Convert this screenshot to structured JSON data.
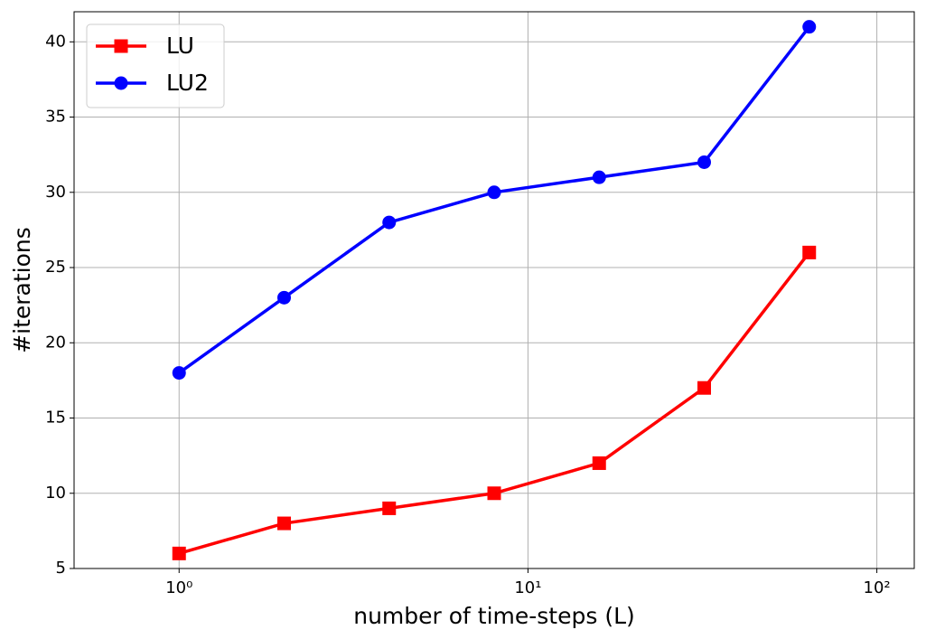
{
  "chart_data": {
    "type": "line",
    "x_label": "number of time-steps (L)",
    "y_label": "#iterations",
    "x": [
      1,
      2,
      4,
      8,
      16,
      32,
      64
    ],
    "series": [
      {
        "name": "LU",
        "color": "#ff0000",
        "marker": "square",
        "values": [
          6,
          8,
          9,
          10,
          12,
          17,
          26
        ]
      },
      {
        "name": "LU2",
        "color": "#0000ff",
        "marker": "circle",
        "values": [
          18,
          23,
          28,
          30,
          31,
          32,
          41
        ]
      }
    ],
    "xlog": true,
    "xlim": [
      0.5,
      128
    ],
    "xticks": [
      {
        "value": 1,
        "label": "10⁰"
      },
      {
        "value": 10,
        "label": "10¹"
      },
      {
        "value": 100,
        "label": "10²"
      }
    ],
    "ylim": [
      5,
      42
    ],
    "yticks": [
      5,
      10,
      15,
      20,
      25,
      30,
      35,
      40
    ],
    "grid": true,
    "legend": "upper-left"
  }
}
